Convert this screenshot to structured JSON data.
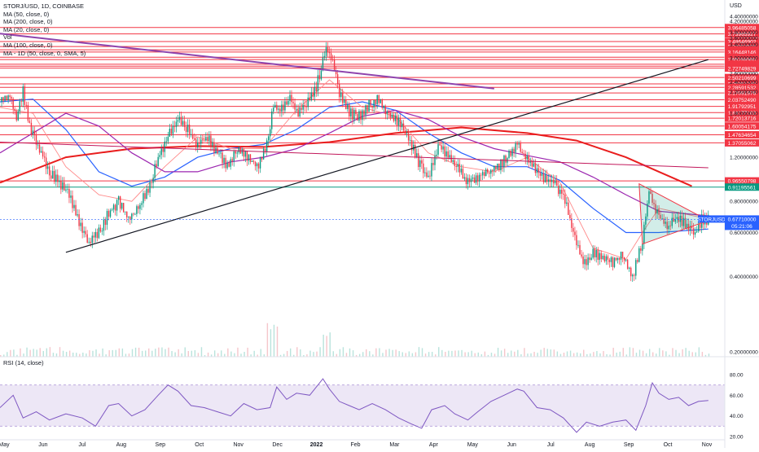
{
  "legend": {
    "symbol": "STORJ/USD, 1D, COINBASE",
    "lines": [
      "MA (50, close, 0)",
      "MA (200, close, 0)",
      "MA (20, close, 0)",
      "Vol",
      "MA (100, close, 0)",
      "MA - 1D (50, close, 0, SMA, 5)"
    ],
    "rsi": "RSI (14, close)"
  },
  "price_axis": {
    "currency": "USD",
    "ticks": [
      "4.40000000",
      "4.20000000",
      "3.80000000",
      "3.60000000",
      "3.40000000",
      "3.00000000",
      "2.60000000",
      "2.40000000",
      "2.20000000",
      "1.80000000",
      "1.20000000",
      "0.80000000",
      "0.60000000",
      "0.40000000",
      "0.20000000"
    ]
  },
  "level_labels": [
    "3.96485058",
    "3.73965927",
    "3.48646902",
    "3.33007506",
    "3.22887896",
    "3.16448146",
    "3.01728712",
    "2.95288960",
    "2.82869439",
    "2.77809634",
    "2.72749829",
    "2.50210699",
    "2.35951248",
    "2.28591532",
    "2.17091976",
    "2.03752490",
    "1.91792951",
    "1.81177103",
    "1.72013716",
    "1.60054175",
    "1.47634654",
    "1.37055062",
    "0.96550798",
    "0.91195561"
  ],
  "current_price": {
    "symbol": "STORJUSD",
    "price": "0.67710000",
    "countdown": "05:21:06"
  },
  "rsi_axis": {
    "ticks": [
      "80.00",
      "60.00",
      "40.00",
      "20.00"
    ]
  },
  "time_axis": {
    "labels": [
      "May",
      "Jun",
      "Jul",
      "Aug",
      "Sep",
      "Oct",
      "Nov",
      "Dec",
      "2022",
      "Feb",
      "Mar",
      "Apr",
      "May",
      "Jun",
      "Jul",
      "Aug",
      "Sep",
      "Oct",
      "Nov"
    ]
  },
  "colors": {
    "level_line": "#f23645",
    "support": "#089981",
    "sma50": "#2962ff",
    "sma200": "#e91e1e",
    "sma20": "#ff8a8a",
    "sma100": "#9c27b0",
    "trend_purple": "#8e44ad",
    "candle_up": "#089981",
    "candle_down": "#f23645",
    "rsi_line": "#7e57c2",
    "rsi_band": "#ede7f6",
    "price_tag": "#2962ff",
    "level_tag": "#f23645"
  },
  "chart_data": {
    "type": "candlestick",
    "y_scale": "log",
    "ylim": [
      0.2,
      4.6
    ],
    "rsi_ylim": [
      20,
      80
    ],
    "time_axis": "daily, May 2021 to Nov 2022",
    "price_path": [
      [
        0,
        2.0
      ],
      [
        6,
        2.1
      ],
      [
        10,
        1.75
      ],
      [
        14,
        2.2
      ],
      [
        18,
        1.6
      ],
      [
        24,
        1.3
      ],
      [
        30,
        1.05
      ],
      [
        36,
        0.95
      ],
      [
        42,
        0.85
      ],
      [
        48,
        0.65
      ],
      [
        54,
        0.55
      ],
      [
        60,
        0.6
      ],
      [
        66,
        0.72
      ],
      [
        72,
        0.8
      ],
      [
        78,
        0.68
      ],
      [
        84,
        0.75
      ],
      [
        90,
        0.9
      ],
      [
        96,
        1.2
      ],
      [
        102,
        1.45
      ],
      [
        108,
        1.7
      ],
      [
        114,
        1.55
      ],
      [
        120,
        1.35
      ],
      [
        126,
        1.45
      ],
      [
        132,
        1.25
      ],
      [
        138,
        1.1
      ],
      [
        144,
        1.3
      ],
      [
        150,
        1.2
      ],
      [
        156,
        1.1
      ],
      [
        162,
        1.35
      ],
      [
        166,
        1.9
      ],
      [
        170,
        1.85
      ],
      [
        176,
        2.1
      ],
      [
        180,
        1.8
      ],
      [
        186,
        1.95
      ],
      [
        192,
        2.3
      ],
      [
        198,
        3.3
      ],
      [
        202,
        2.9
      ],
      [
        206,
        2.2
      ],
      [
        212,
        1.8
      ],
      [
        218,
        1.75
      ],
      [
        224,
        1.95
      ],
      [
        230,
        2.05
      ],
      [
        236,
        1.75
      ],
      [
        242,
        1.65
      ],
      [
        248,
        1.45
      ],
      [
        254,
        1.15
      ],
      [
        260,
        0.98
      ],
      [
        266,
        1.35
      ],
      [
        272,
        1.2
      ],
      [
        278,
        1.1
      ],
      [
        284,
        0.95
      ],
      [
        290,
        1.0
      ],
      [
        296,
        1.05
      ],
      [
        302,
        1.1
      ],
      [
        308,
        1.2
      ],
      [
        314,
        1.35
      ],
      [
        318,
        1.2
      ],
      [
        324,
        1.1
      ],
      [
        330,
        1.0
      ],
      [
        336,
        0.95
      ],
      [
        342,
        0.85
      ],
      [
        348,
        0.6
      ],
      [
        354,
        0.45
      ],
      [
        360,
        0.5
      ],
      [
        366,
        0.48
      ],
      [
        372,
        0.45
      ],
      [
        378,
        0.5
      ],
      [
        384,
        0.4
      ],
      [
        390,
        0.55
      ],
      [
        394,
        0.88
      ],
      [
        398,
        0.72
      ],
      [
        402,
        0.68
      ],
      [
        406,
        0.62
      ],
      [
        410,
        0.7
      ],
      [
        416,
        0.65
      ],
      [
        422,
        0.6
      ],
      [
        426,
        0.68
      ],
      [
        430,
        0.677
      ]
    ],
    "rsi_path": [
      [
        0,
        48
      ],
      [
        8,
        60
      ],
      [
        14,
        38
      ],
      [
        22,
        44
      ],
      [
        30,
        36
      ],
      [
        40,
        42
      ],
      [
        50,
        38
      ],
      [
        58,
        30
      ],
      [
        66,
        50
      ],
      [
        72,
        52
      ],
      [
        80,
        40
      ],
      [
        88,
        46
      ],
      [
        96,
        60
      ],
      [
        102,
        70
      ],
      [
        108,
        64
      ],
      [
        116,
        50
      ],
      [
        124,
        48
      ],
      [
        132,
        44
      ],
      [
        140,
        40
      ],
      [
        148,
        52
      ],
      [
        156,
        46
      ],
      [
        164,
        48
      ],
      [
        168,
        68
      ],
      [
        174,
        56
      ],
      [
        180,
        62
      ],
      [
        188,
        60
      ],
      [
        196,
        76
      ],
      [
        200,
        66
      ],
      [
        206,
        54
      ],
      [
        212,
        50
      ],
      [
        218,
        46
      ],
      [
        226,
        52
      ],
      [
        234,
        46
      ],
      [
        242,
        38
      ],
      [
        250,
        32
      ],
      [
        256,
        28
      ],
      [
        262,
        46
      ],
      [
        270,
        50
      ],
      [
        276,
        42
      ],
      [
        284,
        36
      ],
      [
        290,
        44
      ],
      [
        298,
        54
      ],
      [
        306,
        60
      ],
      [
        314,
        66
      ],
      [
        318,
        64
      ],
      [
        326,
        48
      ],
      [
        334,
        46
      ],
      [
        342,
        38
      ],
      [
        350,
        24
      ],
      [
        356,
        34
      ],
      [
        364,
        30
      ],
      [
        372,
        34
      ],
      [
        380,
        36
      ],
      [
        386,
        26
      ],
      [
        392,
        50
      ],
      [
        396,
        72
      ],
      [
        400,
        62
      ],
      [
        406,
        56
      ],
      [
        412,
        58
      ],
      [
        418,
        50
      ],
      [
        424,
        54
      ],
      [
        430,
        55
      ]
    ],
    "moving_averages": [
      {
        "name": "MA (50, close, 0)",
        "points": [
          [
            0,
            2.0
          ],
          [
            20,
            2.05
          ],
          [
            40,
            1.55
          ],
          [
            60,
            1.05
          ],
          [
            80,
            0.92
          ],
          [
            100,
            1.0
          ],
          [
            120,
            1.2
          ],
          [
            140,
            1.3
          ],
          [
            160,
            1.35
          ],
          [
            180,
            1.55
          ],
          [
            200,
            1.9
          ],
          [
            220,
            2.0
          ],
          [
            240,
            1.85
          ],
          [
            260,
            1.5
          ],
          [
            280,
            1.25
          ],
          [
            300,
            1.1
          ],
          [
            320,
            1.1
          ],
          [
            340,
            0.97
          ],
          [
            360,
            0.75
          ],
          [
            380,
            0.6
          ],
          [
            400,
            0.6
          ],
          [
            430,
            0.62
          ]
        ]
      },
      {
        "name": "MA (200, close, 0)",
        "points": [
          [
            0,
            0.95
          ],
          [
            40,
            1.2
          ],
          [
            80,
            1.3
          ],
          [
            120,
            1.33
          ],
          [
            160,
            1.32
          ],
          [
            200,
            1.38
          ],
          [
            240,
            1.5
          ],
          [
            280,
            1.58
          ],
          [
            320,
            1.5
          ],
          [
            350,
            1.4
          ],
          [
            380,
            1.2
          ],
          [
            400,
            1.05
          ],
          [
            420,
            0.92
          ]
        ]
      },
      {
        "name": "MA (20, close, 0)",
        "points": [
          [
            0,
            1.9
          ],
          [
            20,
            1.8
          ],
          [
            40,
            1.1
          ],
          [
            60,
            0.85
          ],
          [
            80,
            0.8
          ],
          [
            100,
            1.1
          ],
          [
            120,
            1.45
          ],
          [
            140,
            1.3
          ],
          [
            160,
            1.3
          ],
          [
            180,
            1.85
          ],
          [
            200,
            2.45
          ],
          [
            220,
            1.9
          ],
          [
            240,
            1.75
          ],
          [
            260,
            1.25
          ],
          [
            280,
            1.1
          ],
          [
            300,
            1.05
          ],
          [
            320,
            1.2
          ],
          [
            340,
            0.95
          ],
          [
            360,
            0.52
          ],
          [
            380,
            0.47
          ],
          [
            390,
            0.6
          ],
          [
            400,
            0.75
          ],
          [
            430,
            0.68
          ]
        ]
      },
      {
        "name": "MA (100, close, 0)",
        "points": [
          [
            0,
            1.25
          ],
          [
            40,
            1.8
          ],
          [
            60,
            1.6
          ],
          [
            80,
            1.25
          ],
          [
            100,
            1.05
          ],
          [
            120,
            1.05
          ],
          [
            140,
            1.15
          ],
          [
            160,
            1.2
          ],
          [
            180,
            1.3
          ],
          [
            200,
            1.5
          ],
          [
            220,
            1.75
          ],
          [
            240,
            1.85
          ],
          [
            260,
            1.7
          ],
          [
            280,
            1.45
          ],
          [
            300,
            1.3
          ],
          [
            320,
            1.22
          ],
          [
            340,
            1.15
          ],
          [
            360,
            1.0
          ],
          [
            380,
            0.85
          ],
          [
            400,
            0.73
          ],
          [
            430,
            0.7
          ]
        ]
      }
    ],
    "trendlines": [
      {
        "from": [
          0,
          3.75
        ],
        "to": [
          300,
          2.26
        ]
      },
      {
        "from": [
          40,
          0.5
        ],
        "to": [
          430,
          2.95
        ]
      },
      {
        "from": [
          0,
          1.38
        ],
        "to": [
          430,
          1.09
        ]
      }
    ],
    "triangle": [
      [
        388,
        0.94
      ],
      [
        430,
        0.67
      ],
      [
        390,
        0.54
      ]
    ]
  }
}
